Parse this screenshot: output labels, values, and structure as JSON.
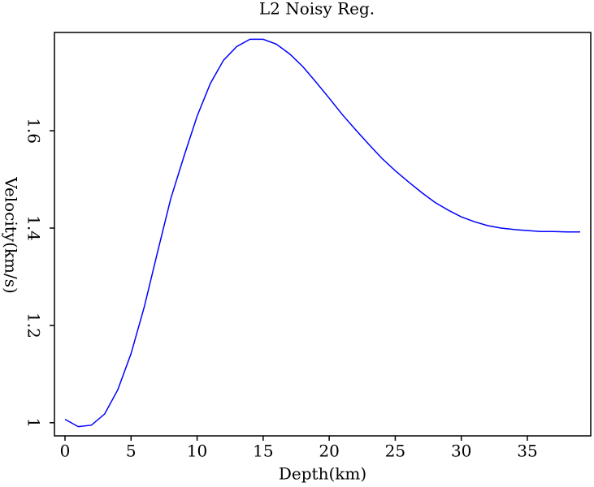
{
  "chart_data": {
    "type": "line",
    "title": "L2 Noisy Reg.",
    "x_label": "Depth(km)",
    "y_label": "Velocity(km/s)",
    "x": [
      0,
      1,
      2,
      3,
      4,
      5,
      6,
      7,
      8,
      9,
      10,
      11,
      12,
      13,
      14,
      15,
      16,
      17,
      18,
      19,
      20,
      21,
      22,
      23,
      24,
      25,
      26,
      27,
      28,
      29,
      30,
      31,
      32,
      33,
      34,
      35,
      36,
      37,
      38,
      39
    ],
    "series": [
      {
        "color": "#0000ff",
        "values": [
          1.007,
          0.992,
          0.995,
          1.018,
          1.068,
          1.142,
          1.238,
          1.35,
          1.46,
          1.547,
          1.63,
          1.697,
          1.745,
          1.773,
          1.788,
          1.788,
          1.778,
          1.758,
          1.732,
          1.7,
          1.667,
          1.633,
          1.602,
          1.572,
          1.543,
          1.518,
          1.495,
          1.473,
          1.453,
          1.437,
          1.423,
          1.413,
          1.405,
          1.4,
          1.397,
          1.395,
          1.393,
          1.393,
          1.392,
          1.392
        ]
      }
    ],
    "xlim": [
      -0.8,
      39.8
    ],
    "ylim": [
      0.973,
      1.802
    ],
    "xticks": [
      0,
      5,
      10,
      15,
      20,
      25,
      30,
      35
    ],
    "yticks": [
      1,
      1.2,
      1.4,
      1.6
    ]
  }
}
